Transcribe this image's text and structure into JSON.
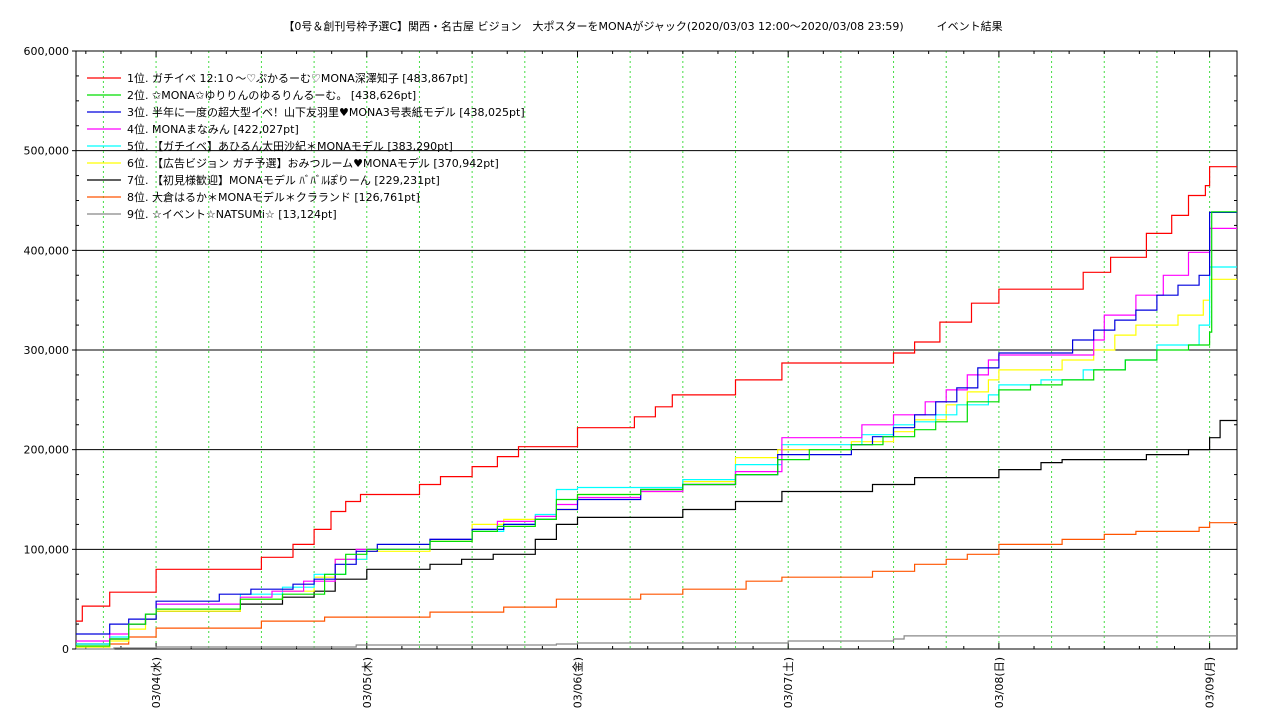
{
  "chart_data": {
    "type": "line",
    "step": true,
    "title": "【0号＆創刊号枠予選C】関西・名古屋 ビジョン　大ポスターをMONAがジャック(2020/03/03 12:00〜2020/03/08 23:59)　　　イベント結果",
    "xlabel": "",
    "ylabel": "",
    "ylim": [
      0,
      600000
    ],
    "y_ticks": [
      0,
      100000,
      200000,
      300000,
      400000,
      500000,
      600000
    ],
    "y_tick_labels": [
      "0",
      "100,000",
      "200,000",
      "300,000",
      "400,000",
      "500,000",
      "600,000"
    ],
    "xlim": [
      -0.38,
      5.13
    ],
    "x_ticks": [
      0,
      1,
      2,
      3,
      4,
      5
    ],
    "x_tick_labels": [
      "03/04(水)",
      "03/05(木)",
      "03/06(金)",
      "03/07(土)",
      "03/08(日)",
      "03/09(月)"
    ],
    "x_units": "days from 03/04 00:00",
    "grid": true,
    "legend_position": "top-left",
    "colors": [
      "#ff0000",
      "#00dd00",
      "#0000dd",
      "#ff00ff",
      "#00ffff",
      "#ffff00",
      "#000000",
      "#ff5500",
      "#888888"
    ],
    "series": [
      {
        "name": "1位. ガチイベ 12:1０〜♡ぷかるーむ♡MONA深澤知子 [483,867pt]",
        "points": [
          [
            -0.38,
            28000
          ],
          [
            -0.35,
            43000
          ],
          [
            -0.22,
            57000
          ],
          [
            0.0,
            80000
          ],
          [
            0.5,
            92000
          ],
          [
            0.65,
            105000
          ],
          [
            0.75,
            120000
          ],
          [
            0.83,
            138000
          ],
          [
            0.9,
            148000
          ],
          [
            0.97,
            155000
          ],
          [
            1.25,
            165000
          ],
          [
            1.35,
            173000
          ],
          [
            1.5,
            183000
          ],
          [
            1.62,
            193000
          ],
          [
            1.72,
            203000
          ],
          [
            2.0,
            222000
          ],
          [
            2.27,
            233000
          ],
          [
            2.37,
            243000
          ],
          [
            2.45,
            255000
          ],
          [
            2.75,
            270000
          ],
          [
            2.97,
            287000
          ],
          [
            3.5,
            297000
          ],
          [
            3.6,
            308000
          ],
          [
            3.72,
            328000
          ],
          [
            3.87,
            347000
          ],
          [
            4.0,
            361000
          ],
          [
            4.4,
            378000
          ],
          [
            4.53,
            393000
          ],
          [
            4.7,
            417000
          ],
          [
            4.82,
            435000
          ],
          [
            4.9,
            455000
          ],
          [
            4.98,
            465000
          ],
          [
            5.0,
            483867
          ],
          [
            5.13,
            483867
          ]
        ]
      },
      {
        "name": "2位. ✩MONA✩ゆりりんのゆるりんるーむ。 [438,626pt]",
        "points": [
          [
            -0.38,
            3000
          ],
          [
            -0.22,
            10000
          ],
          [
            -0.13,
            25000
          ],
          [
            -0.05,
            35000
          ],
          [
            0.0,
            40000
          ],
          [
            0.4,
            50000
          ],
          [
            0.6,
            55000
          ],
          [
            0.8,
            75000
          ],
          [
            0.9,
            95000
          ],
          [
            1.0,
            100000
          ],
          [
            1.3,
            108000
          ],
          [
            1.5,
            118000
          ],
          [
            1.62,
            123000
          ],
          [
            1.8,
            130000
          ],
          [
            1.9,
            150000
          ],
          [
            2.0,
            155000
          ],
          [
            2.3,
            160000
          ],
          [
            2.5,
            165000
          ],
          [
            2.75,
            175000
          ],
          [
            2.95,
            190000
          ],
          [
            3.1,
            200000
          ],
          [
            3.3,
            205000
          ],
          [
            3.45,
            213000
          ],
          [
            3.6,
            220000
          ],
          [
            3.7,
            228000
          ],
          [
            3.85,
            248000
          ],
          [
            4.0,
            260000
          ],
          [
            4.15,
            265000
          ],
          [
            4.3,
            270000
          ],
          [
            4.45,
            280000
          ],
          [
            4.6,
            290000
          ],
          [
            4.75,
            300000
          ],
          [
            4.9,
            305000
          ],
          [
            5.0,
            318000
          ],
          [
            5.01,
            438626
          ],
          [
            5.13,
            438626
          ]
        ]
      },
      {
        "name": "3位. 半年に一度の超大型イベ！山下友羽里♥MONA3号表紙モデル [438,025pt]",
        "points": [
          [
            -0.38,
            15000
          ],
          [
            -0.22,
            25000
          ],
          [
            -0.13,
            30000
          ],
          [
            0.0,
            48000
          ],
          [
            0.3,
            55000
          ],
          [
            0.45,
            60000
          ],
          [
            0.65,
            65000
          ],
          [
            0.75,
            70000
          ],
          [
            0.85,
            85000
          ],
          [
            0.95,
            98000
          ],
          [
            1.05,
            105000
          ],
          [
            1.3,
            110000
          ],
          [
            1.5,
            120000
          ],
          [
            1.65,
            125000
          ],
          [
            1.8,
            130000
          ],
          [
            1.9,
            140000
          ],
          [
            2.0,
            150000
          ],
          [
            2.3,
            160000
          ],
          [
            2.5,
            165000
          ],
          [
            2.75,
            175000
          ],
          [
            2.95,
            195000
          ],
          [
            3.3,
            205000
          ],
          [
            3.4,
            213000
          ],
          [
            3.5,
            222000
          ],
          [
            3.6,
            235000
          ],
          [
            3.7,
            248000
          ],
          [
            3.8,
            262000
          ],
          [
            3.9,
            282000
          ],
          [
            4.0,
            297000
          ],
          [
            4.35,
            310000
          ],
          [
            4.45,
            320000
          ],
          [
            4.55,
            330000
          ],
          [
            4.65,
            340000
          ],
          [
            4.75,
            355000
          ],
          [
            4.85,
            365000
          ],
          [
            4.95,
            375000
          ],
          [
            5.0,
            438025
          ],
          [
            5.13,
            438025
          ]
        ]
      },
      {
        "name": "4位. MONAまなみん [422,027pt]",
        "points": [
          [
            -0.38,
            8000
          ],
          [
            -0.22,
            15000
          ],
          [
            -0.13,
            25000
          ],
          [
            -0.05,
            35000
          ],
          [
            0.0,
            45000
          ],
          [
            0.4,
            52000
          ],
          [
            0.55,
            58000
          ],
          [
            0.7,
            68000
          ],
          [
            0.85,
            90000
          ],
          [
            0.95,
            100000
          ],
          [
            1.3,
            110000
          ],
          [
            1.5,
            120000
          ],
          [
            1.62,
            128000
          ],
          [
            1.8,
            133000
          ],
          [
            1.9,
            145000
          ],
          [
            2.0,
            152000
          ],
          [
            2.3,
            158000
          ],
          [
            2.5,
            165000
          ],
          [
            2.75,
            178000
          ],
          [
            2.97,
            212000
          ],
          [
            3.35,
            225000
          ],
          [
            3.5,
            235000
          ],
          [
            3.65,
            248000
          ],
          [
            3.75,
            260000
          ],
          [
            3.85,
            275000
          ],
          [
            3.95,
            290000
          ],
          [
            4.0,
            295000
          ],
          [
            4.45,
            310000
          ],
          [
            4.5,
            335000
          ],
          [
            4.65,
            355000
          ],
          [
            4.78,
            375000
          ],
          [
            4.9,
            398000
          ],
          [
            5.0,
            422027
          ],
          [
            5.13,
            422027
          ]
        ]
      },
      {
        "name": "5位. 【ガチイベ】あひるん太田沙紀＊MONAモデル [383,290pt]",
        "points": [
          [
            -0.38,
            5000
          ],
          [
            -0.22,
            12000
          ],
          [
            -0.13,
            25000
          ],
          [
            -0.05,
            35000
          ],
          [
            0.0,
            45000
          ],
          [
            0.4,
            55000
          ],
          [
            0.6,
            62000
          ],
          [
            0.75,
            75000
          ],
          [
            0.9,
            90000
          ],
          [
            1.0,
            100000
          ],
          [
            1.3,
            110000
          ],
          [
            1.5,
            118000
          ],
          [
            1.65,
            125000
          ],
          [
            1.8,
            135000
          ],
          [
            1.9,
            160000
          ],
          [
            2.0,
            162000
          ],
          [
            2.5,
            170000
          ],
          [
            2.75,
            185000
          ],
          [
            2.97,
            205000
          ],
          [
            3.35,
            215000
          ],
          [
            3.5,
            225000
          ],
          [
            3.6,
            228000
          ],
          [
            3.7,
            235000
          ],
          [
            3.8,
            245000
          ],
          [
            3.95,
            255000
          ],
          [
            4.0,
            265000
          ],
          [
            4.2,
            270000
          ],
          [
            4.4,
            280000
          ],
          [
            4.6,
            290000
          ],
          [
            4.75,
            305000
          ],
          [
            4.95,
            325000
          ],
          [
            5.0,
            383290
          ],
          [
            5.13,
            383290
          ]
        ]
      },
      {
        "name": "6位. 【広告ビジョン ガチ予選】おみつルーム♥MONAモデル [370,942pt]",
        "points": [
          [
            -0.38,
            2000
          ],
          [
            -0.22,
            8000
          ],
          [
            -0.13,
            20000
          ],
          [
            -0.05,
            30000
          ],
          [
            0.0,
            38000
          ],
          [
            0.4,
            50000
          ],
          [
            0.6,
            58000
          ],
          [
            0.75,
            72000
          ],
          [
            0.85,
            90000
          ],
          [
            1.0,
            98000
          ],
          [
            1.3,
            108000
          ],
          [
            1.5,
            125000
          ],
          [
            1.65,
            130000
          ],
          [
            1.9,
            140000
          ],
          [
            2.0,
            155000
          ],
          [
            2.3,
            158000
          ],
          [
            2.5,
            168000
          ],
          [
            2.75,
            192000
          ],
          [
            2.95,
            200000
          ],
          [
            3.3,
            208000
          ],
          [
            3.5,
            218000
          ],
          [
            3.6,
            230000
          ],
          [
            3.75,
            245000
          ],
          [
            3.85,
            258000
          ],
          [
            3.95,
            270000
          ],
          [
            4.0,
            280000
          ],
          [
            4.3,
            290000
          ],
          [
            4.45,
            300000
          ],
          [
            4.55,
            315000
          ],
          [
            4.65,
            325000
          ],
          [
            4.85,
            335000
          ],
          [
            4.97,
            350000
          ],
          [
            5.0,
            370942
          ],
          [
            5.13,
            370942
          ]
        ]
      },
      {
        "name": "7位. 【初見様歓迎】MONAモデル ﾊﾞﾊﾞﾙぽりーん [229,231pt]",
        "points": [
          [
            -0.38,
            5000
          ],
          [
            -0.22,
            10000
          ],
          [
            -0.13,
            25000
          ],
          [
            -0.05,
            30000
          ],
          [
            0.0,
            38000
          ],
          [
            0.4,
            45000
          ],
          [
            0.6,
            52000
          ],
          [
            0.75,
            58000
          ],
          [
            0.85,
            70000
          ],
          [
            1.0,
            80000
          ],
          [
            1.3,
            85000
          ],
          [
            1.45,
            90000
          ],
          [
            1.6,
            95000
          ],
          [
            1.8,
            110000
          ],
          [
            1.9,
            125000
          ],
          [
            2.0,
            132000
          ],
          [
            2.5,
            140000
          ],
          [
            2.75,
            148000
          ],
          [
            2.97,
            158000
          ],
          [
            3.4,
            165000
          ],
          [
            3.6,
            172000
          ],
          [
            4.0,
            180000
          ],
          [
            4.2,
            187000
          ],
          [
            4.3,
            190000
          ],
          [
            4.7,
            195000
          ],
          [
            4.9,
            200000
          ],
          [
            5.0,
            212000
          ],
          [
            5.05,
            229231
          ],
          [
            5.13,
            229231
          ]
        ]
      },
      {
        "name": "8位. 大倉はるか＊MONAモデル＊クラランド [126,761pt]",
        "points": [
          [
            -0.38,
            2000
          ],
          [
            -0.22,
            5000
          ],
          [
            -0.13,
            12000
          ],
          [
            0.0,
            21000
          ],
          [
            0.5,
            28000
          ],
          [
            0.8,
            32000
          ],
          [
            1.3,
            37000
          ],
          [
            1.65,
            42000
          ],
          [
            1.9,
            50000
          ],
          [
            2.3,
            55000
          ],
          [
            2.5,
            60000
          ],
          [
            2.8,
            68000
          ],
          [
            2.97,
            72000
          ],
          [
            3.4,
            78000
          ],
          [
            3.6,
            85000
          ],
          [
            3.75,
            90000
          ],
          [
            3.85,
            95000
          ],
          [
            4.0,
            105000
          ],
          [
            4.3,
            110000
          ],
          [
            4.5,
            115000
          ],
          [
            4.65,
            118000
          ],
          [
            4.95,
            122000
          ],
          [
            5.0,
            126761
          ],
          [
            5.13,
            126761
          ]
        ]
      },
      {
        "name": "9位. ☆イベント☆NATSUMi☆ [13,124pt]",
        "points": [
          [
            -0.38,
            0
          ],
          [
            -0.2,
            1000
          ],
          [
            0.0,
            2000
          ],
          [
            0.95,
            4000
          ],
          [
            1.9,
            5000
          ],
          [
            2.0,
            6000
          ],
          [
            3.0,
            8000
          ],
          [
            3.5,
            10000
          ],
          [
            3.55,
            13124
          ],
          [
            5.13,
            13124
          ]
        ]
      }
    ]
  }
}
